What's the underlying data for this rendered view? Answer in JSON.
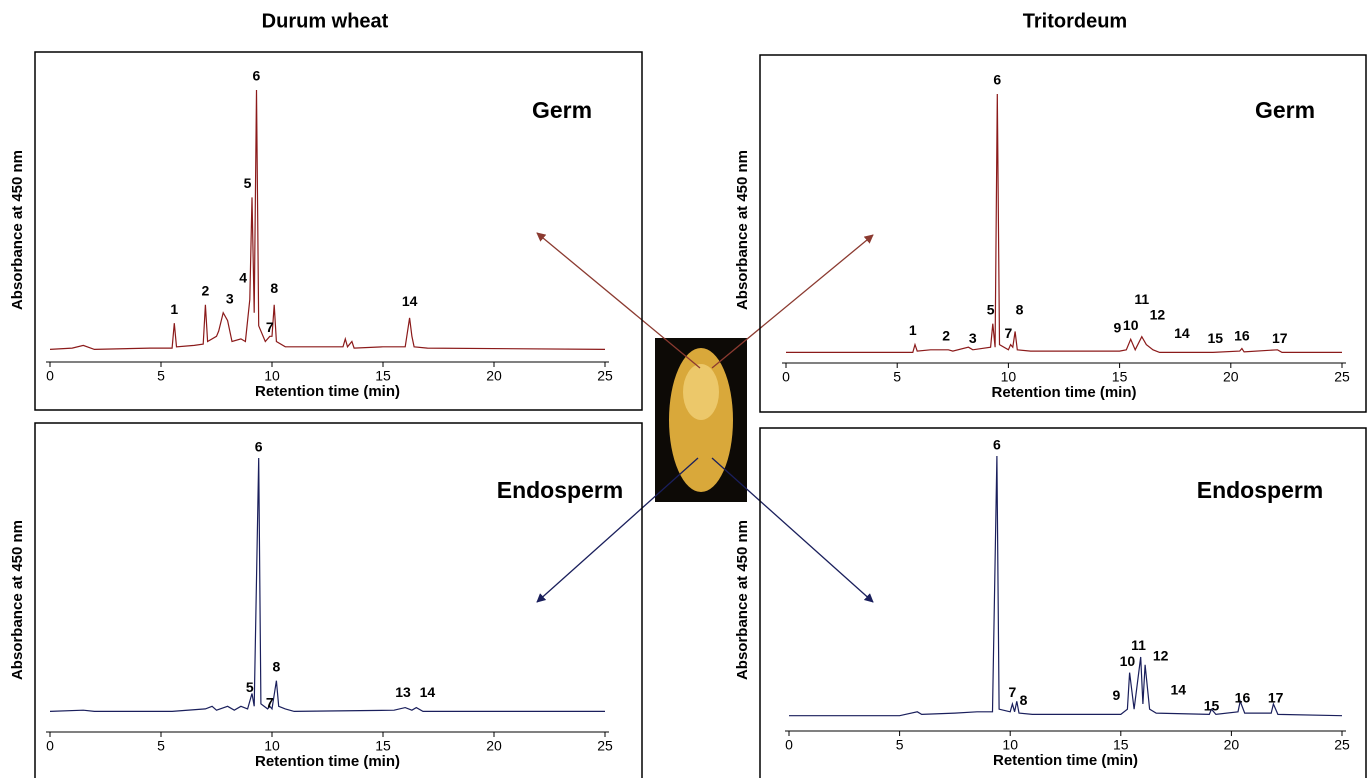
{
  "titles": [
    "Durum wheat",
    "Tritordeum"
  ],
  "chart_data": [
    {
      "type": "line",
      "label": "Germ",
      "color": "#8b1a1a",
      "x": [
        0,
        1,
        1.5,
        2,
        4.5,
        5.5,
        5.6,
        5.7,
        6.5,
        6.9,
        7.0,
        7.1,
        7.5,
        7.6,
        7.8,
        8.0,
        8.2,
        8.6,
        8.8,
        9.0,
        9.1,
        9.2,
        9.3,
        9.4,
        9.7,
        9.9,
        10.0,
        10.1,
        10.2,
        10.6,
        13.2,
        13.3,
        13.4,
        13.6,
        13.7,
        15,
        16.0,
        16.2,
        16.3,
        16.4,
        17,
        25
      ],
      "values": [
        1,
        1.5,
        2.5,
        1,
        1.5,
        1.5,
        11,
        2,
        2.5,
        3,
        18,
        4,
        6,
        8,
        15,
        12,
        4,
        5,
        4,
        20,
        59,
        15,
        100,
        10,
        4,
        6,
        6,
        18,
        4,
        2,
        2,
        5,
        2,
        4,
        1.5,
        2,
        2,
        13,
        6,
        2,
        1.5,
        1
      ],
      "xlim": [
        0,
        25
      ],
      "xticks": [
        0,
        5,
        10,
        15,
        20,
        25
      ],
      "ylim": [
        0,
        100
      ],
      "x_label": "Retention time (min)",
      "y_label": "Absorbance at 450 nm",
      "annotations": [
        {
          "text": "1",
          "x": 5.6,
          "y": 16
        },
        {
          "text": "2",
          "x": 7.0,
          "y": 23
        },
        {
          "text": "3",
          "x": 8.1,
          "y": 20
        },
        {
          "text": "4",
          "x": 8.7,
          "y": 28
        },
        {
          "text": "5",
          "x": 8.9,
          "y": 64
        },
        {
          "text": "6",
          "x": 9.3,
          "y": 105
        },
        {
          "text": "7",
          "x": 9.9,
          "y": 9
        },
        {
          "text": "8",
          "x": 10.1,
          "y": 24
        },
        {
          "text": "14",
          "x": 16.2,
          "y": 19
        }
      ]
    },
    {
      "type": "line",
      "label": "Endosperm",
      "color": "#1a1f5c",
      "x": [
        0,
        1.5,
        2,
        5.5,
        7,
        7.3,
        7.5,
        8,
        8.3,
        8.6,
        8.9,
        9.1,
        9.2,
        9.4,
        9.5,
        9.8,
        9.9,
        10.0,
        10.2,
        10.3,
        10.6,
        11,
        15.5,
        16.0,
        16.3,
        16.5,
        16.8,
        25
      ],
      "values": [
        1,
        1.5,
        1,
        1,
        2,
        3,
        1.5,
        3,
        1.5,
        3,
        2,
        8,
        3,
        100,
        4,
        2,
        3,
        2,
        13,
        3,
        2,
        1,
        1.5,
        2.5,
        1.5,
        2.5,
        1,
        1
      ],
      "xlim": [
        0,
        25
      ],
      "xticks": [
        0,
        5,
        10,
        15,
        20,
        25
      ],
      "ylim": [
        0,
        100
      ],
      "x_label": "Retention time (min)",
      "y_label": "Absorbance at 450 nm",
      "annotations": [
        {
          "text": "5",
          "x": 9.0,
          "y": 10
        },
        {
          "text": "6",
          "x": 9.4,
          "y": 104
        },
        {
          "text": "7",
          "x": 9.9,
          "y": 4
        },
        {
          "text": "8",
          "x": 10.2,
          "y": 18
        },
        {
          "text": "13",
          "x": 15.9,
          "y": 8
        },
        {
          "text": "14",
          "x": 17.0,
          "y": 8
        }
      ]
    },
    {
      "type": "line",
      "label": "Germ",
      "color": "#8b1a1a",
      "x": [
        0,
        5,
        5.7,
        5.8,
        5.9,
        6.5,
        7.3,
        7.5,
        8.2,
        8.4,
        9.2,
        9.3,
        9.4,
        9.5,
        9.6,
        10.0,
        10.1,
        10.2,
        10.3,
        10.4,
        11,
        15,
        15.3,
        15.5,
        15.7,
        16.0,
        16.2,
        16.5,
        16.8,
        19.2,
        20.4,
        20.5,
        20.6,
        22.1,
        22.3,
        25
      ],
      "values": [
        1,
        1,
        1,
        4,
        1.5,
        2,
        2,
        1.5,
        3,
        2,
        3,
        12,
        3,
        100,
        4,
        2,
        4,
        3,
        9,
        2,
        1.5,
        1.5,
        2,
        6,
        2,
        7,
        4,
        2,
        1,
        1,
        1.5,
        2.5,
        1.2,
        2,
        1,
        1
      ],
      "xlim": [
        0,
        25
      ],
      "xticks": [
        0,
        5,
        10,
        15,
        20,
        25
      ],
      "ylim": [
        0,
        100
      ],
      "x_label": "Retention time (min)",
      "y_label": "Absorbance at 450 nm",
      "annotations": [
        {
          "text": "1",
          "x": 5.7,
          "y": 9
        },
        {
          "text": "2",
          "x": 7.2,
          "y": 7
        },
        {
          "text": "3",
          "x": 8.4,
          "y": 6
        },
        {
          "text": "5",
          "x": 9.2,
          "y": 17
        },
        {
          "text": "6",
          "x": 9.5,
          "y": 105
        },
        {
          "text": "7",
          "x": 10.0,
          "y": 8
        },
        {
          "text": "8",
          "x": 10.5,
          "y": 17
        },
        {
          "text": "9",
          "x": 14.9,
          "y": 10
        },
        {
          "text": "10",
          "x": 15.5,
          "y": 11
        },
        {
          "text": "11",
          "x": 16.0,
          "y": 21
        },
        {
          "text": "12",
          "x": 16.7,
          "y": 15
        },
        {
          "text": "14",
          "x": 17.8,
          "y": 8
        },
        {
          "text": "15",
          "x": 19.3,
          "y": 6
        },
        {
          "text": "16",
          "x": 20.5,
          "y": 7
        },
        {
          "text": "17",
          "x": 22.2,
          "y": 6
        }
      ]
    },
    {
      "type": "line",
      "label": "Endosperm",
      "color": "#1a1f5c",
      "x": [
        0,
        5,
        5.8,
        6,
        7.5,
        8.5,
        9.2,
        9.4,
        9.5,
        10.0,
        10.1,
        10.2,
        10.3,
        10.4,
        11,
        15,
        15.3,
        15.4,
        15.6,
        15.9,
        16.0,
        16.1,
        16.3,
        16.6,
        19.0,
        19.1,
        19.3,
        20.3,
        20.4,
        20.6,
        21.8,
        21.9,
        22.1,
        25
      ],
      "values": [
        0.5,
        0.5,
        2,
        1,
        1.5,
        2,
        2,
        100,
        3,
        2,
        5,
        2,
        6,
        1.5,
        1,
        1,
        3,
        17,
        3,
        23,
        5,
        20,
        3,
        1.5,
        1,
        3,
        1,
        2,
        6,
        1.5,
        1.5,
        5,
        1,
        0.5
      ],
      "xlim": [
        0,
        25
      ],
      "xticks": [
        0,
        5,
        10,
        15,
        20,
        25
      ],
      "ylim": [
        0,
        100
      ],
      "x_label": "Retention time (min)",
      "y_label": "Absorbance at 450 nm",
      "annotations": [
        {
          "text": "6",
          "x": 9.4,
          "y": 104
        },
        {
          "text": "7",
          "x": 10.1,
          "y": 9
        },
        {
          "text": "8",
          "x": 10.6,
          "y": 6
        },
        {
          "text": "9",
          "x": 14.8,
          "y": 8
        },
        {
          "text": "10",
          "x": 15.3,
          "y": 21
        },
        {
          "text": "11",
          "x": 15.8,
          "y": 27
        },
        {
          "text": "12",
          "x": 16.8,
          "y": 23
        },
        {
          "text": "14",
          "x": 17.6,
          "y": 10
        },
        {
          "text": "15",
          "x": 19.1,
          "y": 4
        },
        {
          "text": "16",
          "x": 20.5,
          "y": 7
        },
        {
          "text": "17",
          "x": 22.0,
          "y": 7
        }
      ]
    }
  ]
}
